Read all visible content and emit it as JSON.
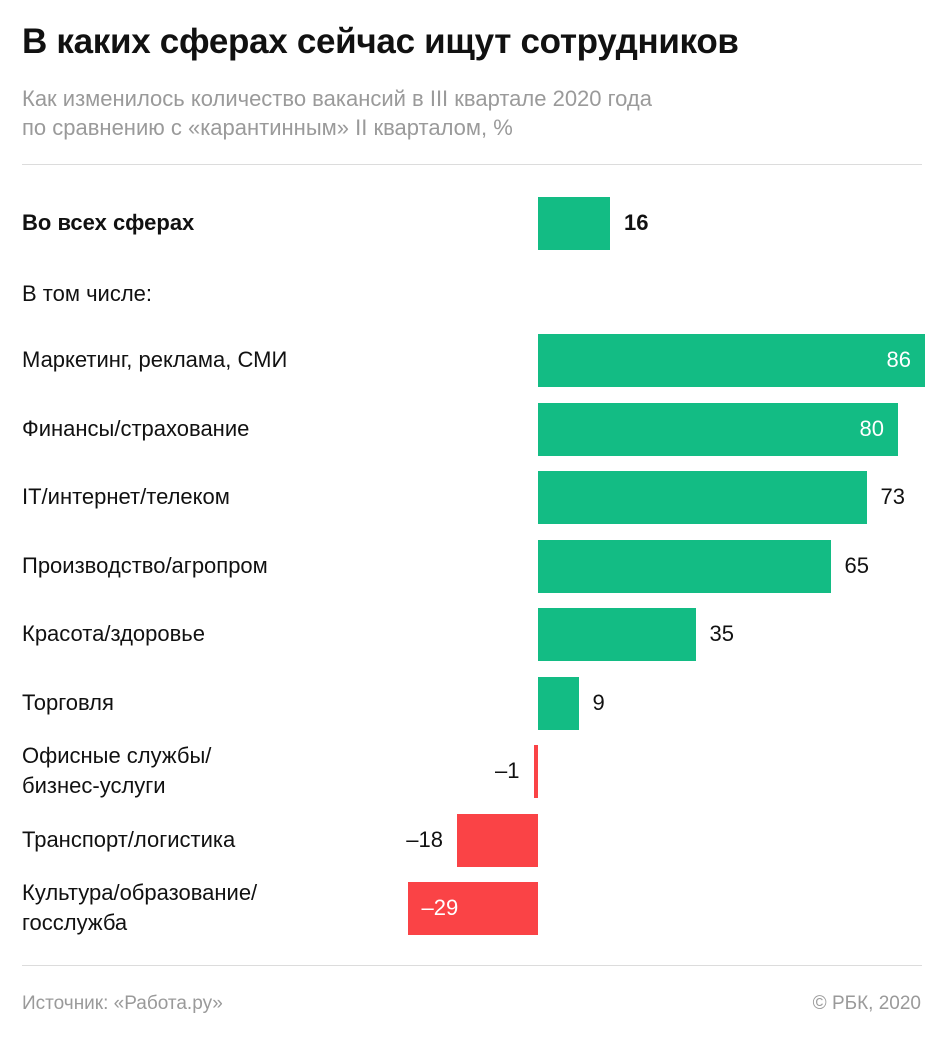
{
  "title": "В каких сферах сейчас ищут сотрудников",
  "subtitle": {
    "line1": "Как изменилось количество вакансий в III квартале 2020 года",
    "line2": "по сравнению с «карантинным» II кварталом, %"
  },
  "section_label": "В том числе:",
  "footer": {
    "source": "Источник: «Работа.ру»",
    "copyright": "© РБК, 2020"
  },
  "colors": {
    "positive": "#13bc84",
    "negative": "#fa4346"
  },
  "chart_data": {
    "type": "bar",
    "orientation": "horizontal",
    "categories": [
      "Во всех сферах",
      "Маркетинг, реклама, СМИ",
      "Финансы/страхование",
      "IT/интернет/телеком",
      "Производство/агропром",
      "Красота/здоровье",
      "Торговля",
      "Офисные службы/\nбизнес-услуги",
      "Транспорт/логистика",
      "Культура/образование/\nгосслужба"
    ],
    "values": [
      16,
      86,
      80,
      73,
      65,
      35,
      9,
      -1,
      -18,
      -29
    ],
    "value_labels": [
      "16",
      "86",
      "80",
      "73",
      "65",
      "35",
      "9",
      "–1",
      "–18",
      "–29"
    ],
    "title": "В каких сферах сейчас ищут сотрудников",
    "xlabel": "",
    "ylabel": "",
    "xlim": [
      -29,
      86
    ],
    "grid": false,
    "legend": "none"
  }
}
